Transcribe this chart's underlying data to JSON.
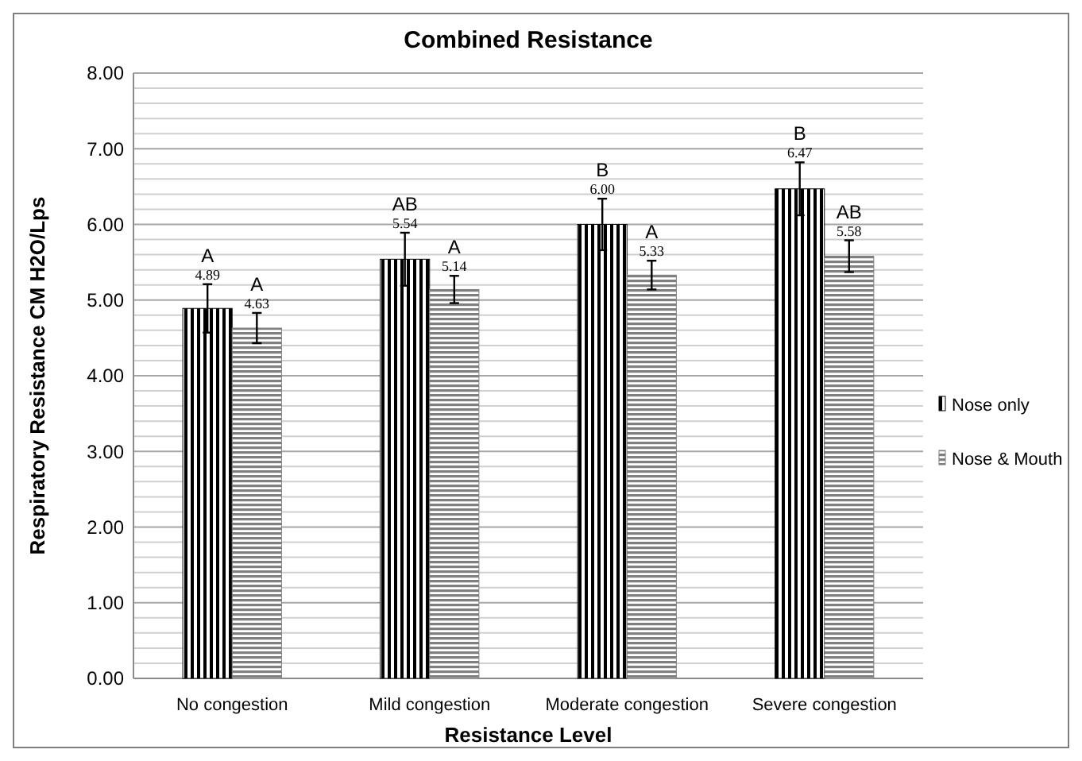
{
  "chart_data": {
    "type": "bar",
    "title": "Combined Resistance",
    "xlabel": "Resistance Level",
    "ylabel": "Respiratory Resistance CM H2O/Lps",
    "categories": [
      "No congestion",
      "Mild congestion",
      "Moderate congestion",
      "Severe congestion"
    ],
    "series": [
      {
        "name": "Nose only",
        "color": "#000000",
        "values": [
          4.89,
          5.54,
          6.0,
          6.47
        ],
        "errors": [
          0.32,
          0.35,
          0.34,
          0.35
        ],
        "value_labels": [
          "4.89",
          "5.54",
          "6.00",
          "6.47"
        ]
      },
      {
        "name": "Nose & Mouth",
        "color": "#7f7f7f",
        "values": [
          4.63,
          5.14,
          5.33,
          5.58
        ],
        "errors": [
          0.2,
          0.18,
          0.19,
          0.21
        ],
        "value_labels": [
          "4.63",
          "5.14",
          "5.33",
          "5.58"
        ]
      }
    ],
    "annotations": [
      "A",
      "A",
      "AB",
      "A",
      "B",
      "A",
      "B",
      "AB"
    ],
    "ylim": [
      0,
      8
    ],
    "yticks": [
      {
        "value": 0,
        "label": "0.00"
      },
      {
        "value": 0.2,
        "label": null
      },
      {
        "value": 0.4,
        "label": null
      },
      {
        "value": 0.6,
        "label": null
      },
      {
        "value": 0.8,
        "label": null
      },
      {
        "value": 1,
        "label": "1.00"
      },
      {
        "value": 1.2,
        "label": null
      },
      {
        "value": 1.4,
        "label": null
      },
      {
        "value": 1.6,
        "label": null
      },
      {
        "value": 1.8,
        "label": null
      },
      {
        "value": 2,
        "label": "2.00"
      },
      {
        "value": 2.2,
        "label": null
      },
      {
        "value": 2.4,
        "label": null
      },
      {
        "value": 2.6,
        "label": null
      },
      {
        "value": 2.8,
        "label": null
      },
      {
        "value": 3,
        "label": "3.00"
      },
      {
        "value": 3.2,
        "label": null
      },
      {
        "value": 3.4,
        "label": null
      },
      {
        "value": 3.6,
        "label": null
      },
      {
        "value": 3.8,
        "label": null
      },
      {
        "value": 4,
        "label": "4.00"
      },
      {
        "value": 4.2,
        "label": null
      },
      {
        "value": 4.4,
        "label": null
      },
      {
        "value": 4.6,
        "label": null
      },
      {
        "value": 4.8,
        "label": null
      },
      {
        "value": 5,
        "label": "5.00"
      },
      {
        "value": 5.2,
        "label": null
      },
      {
        "value": 5.4,
        "label": null
      },
      {
        "value": 5.6,
        "label": null
      },
      {
        "value": 5.8,
        "label": null
      },
      {
        "value": 6,
        "label": "6.00"
      },
      {
        "value": 6.2,
        "label": null
      },
      {
        "value": 6.4,
        "label": null
      },
      {
        "value": 6.6,
        "label": null
      },
      {
        "value": 6.8,
        "label": null
      },
      {
        "value": 7,
        "label": "7.00"
      },
      {
        "value": 7.2,
        "label": null
      },
      {
        "value": 7.4,
        "label": null
      },
      {
        "value": 7.6,
        "label": null
      },
      {
        "value": 7.8,
        "label": null
      },
      {
        "value": 8,
        "label": "8.00"
      }
    ],
    "grid": "y",
    "legend": "right"
  }
}
